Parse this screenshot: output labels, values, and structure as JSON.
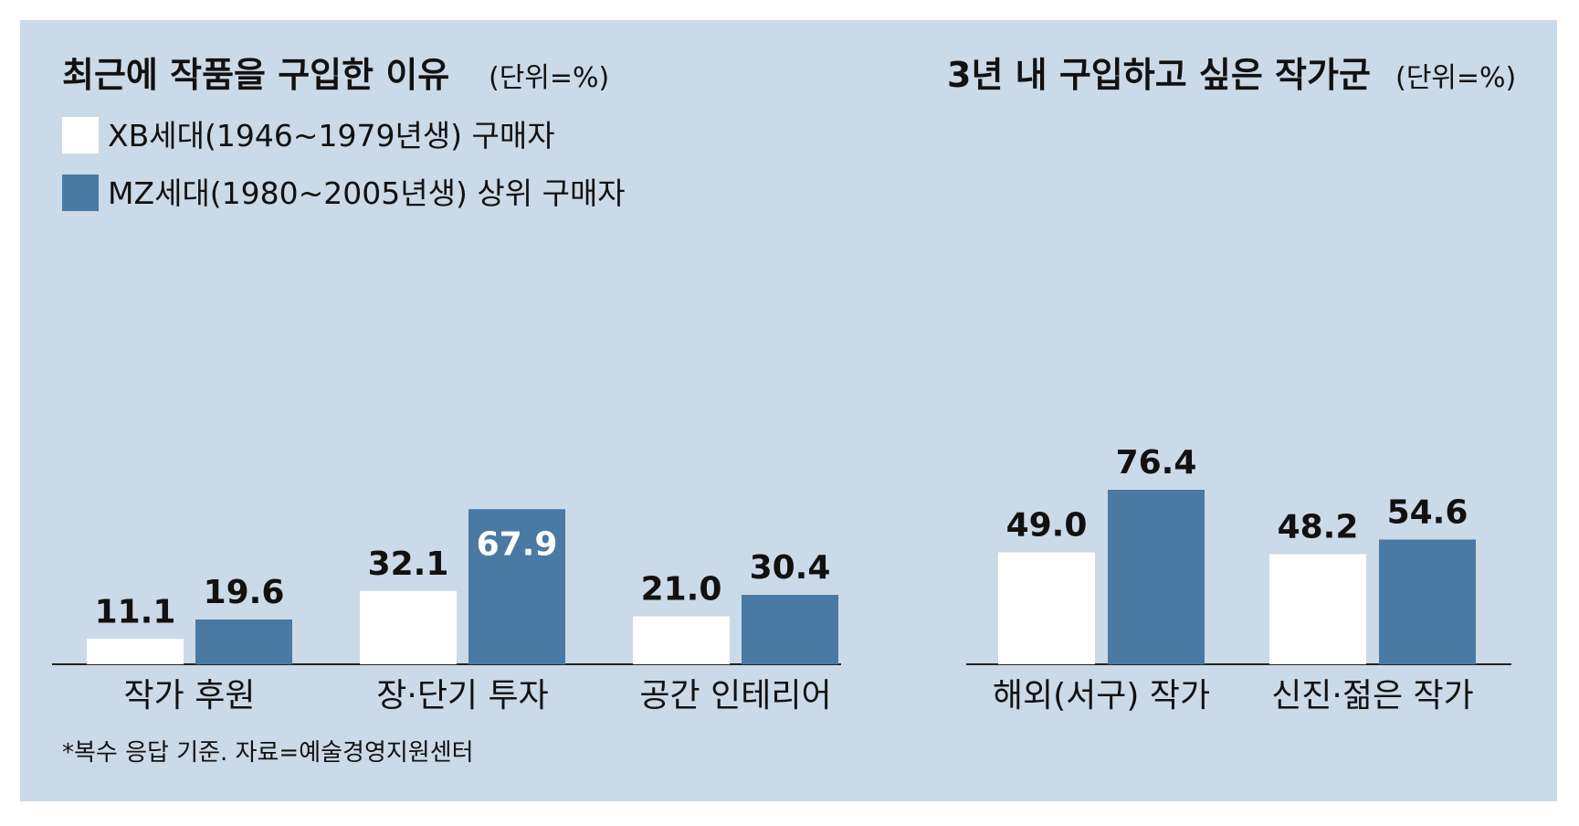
{
  "colors": {
    "background": "#cbdae8",
    "xb": "#ffffff",
    "mz": "#4a7aa4"
  },
  "legend": [
    {
      "name": "XB세대(1946~1979년생) 구매자",
      "color": "#ffffff"
    },
    {
      "name": "MZ세대(1980~2005년생) 상위 구매자",
      "color": "#4a7aa4"
    }
  ],
  "footnote": "*복수 응답 기준. 자료=예술경영지원센터",
  "chart_data": [
    {
      "type": "bar",
      "title": "최근에 작품을 구입한 이유",
      "unit": "(단위=%)",
      "categories": [
        "작가 후원",
        "장·단기 투자",
        "공간 인테리어"
      ],
      "series": [
        {
          "name": "XB세대(1946~1979년생) 구매자",
          "values": [
            11.1,
            32.1,
            21.0
          ],
          "labels": [
            "11.1",
            "32.1",
            "21.0"
          ]
        },
        {
          "name": "MZ세대(1980~2005년생) 상위 구매자",
          "values": [
            19.6,
            67.9,
            30.4
          ],
          "labels": [
            "19.6",
            "67.9",
            "30.4"
          ]
        }
      ],
      "legend": "top-left",
      "grid": false
    },
    {
      "type": "bar",
      "title": "3년 내 구입하고 싶은 작가군",
      "unit": "(단위=%)",
      "categories": [
        "해외(서구) 작가",
        "신진·젊은 작가"
      ],
      "series": [
        {
          "name": "XB세대(1946~1979년생) 구매자",
          "values": [
            49.0,
            48.2
          ],
          "labels": [
            "49.0",
            "48.2"
          ]
        },
        {
          "name": "MZ세대(1980~2005년생) 상위 구매자",
          "values": [
            76.4,
            54.6
          ],
          "labels": [
            "76.4",
            "54.6"
          ]
        }
      ],
      "grid": false
    }
  ]
}
